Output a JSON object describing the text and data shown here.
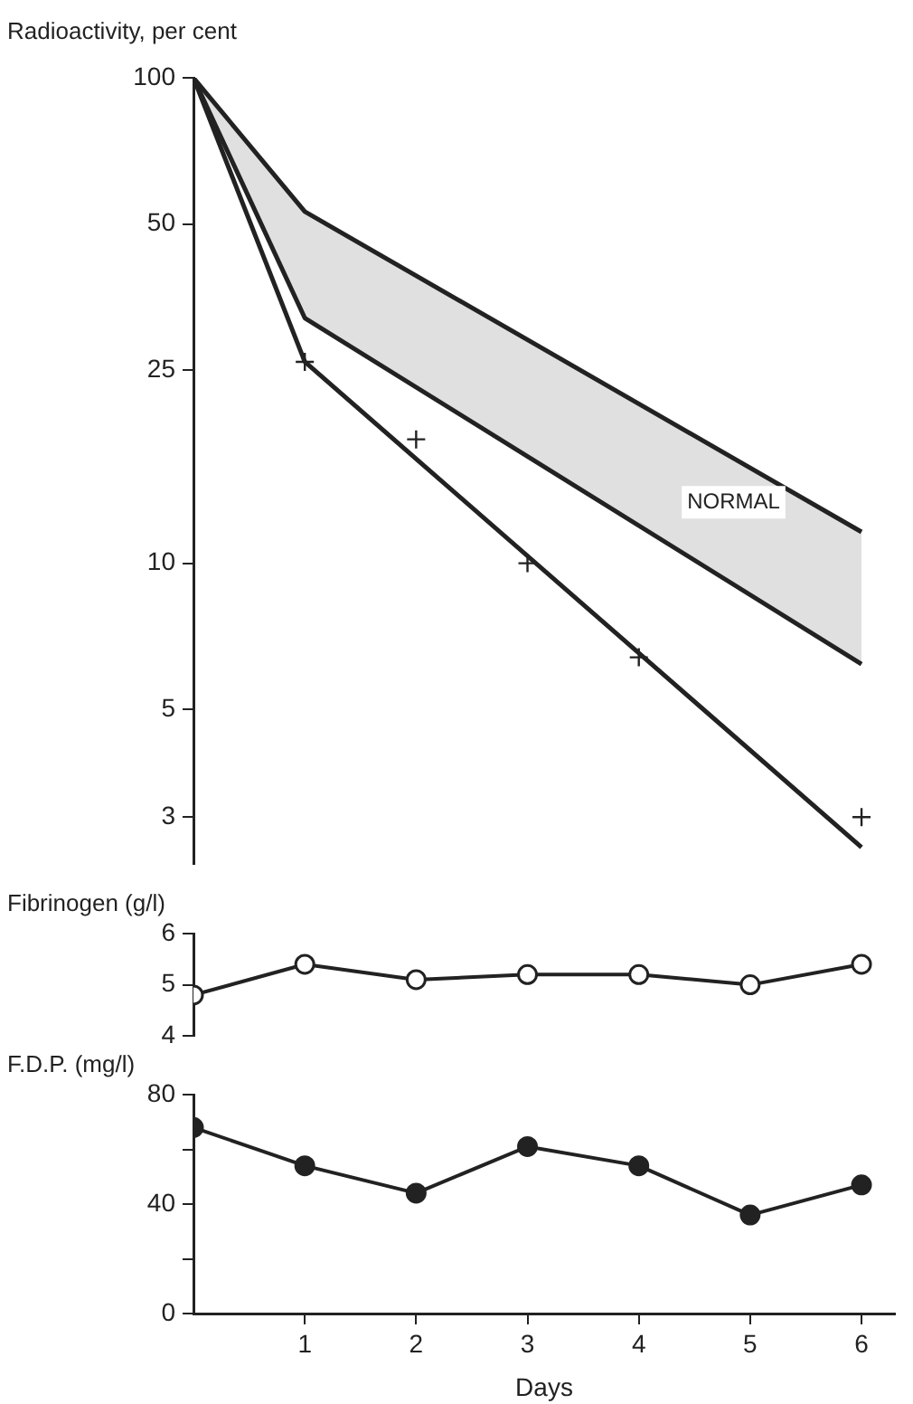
{
  "chart_data": [
    {
      "type": "line",
      "ylabel": "Radioactivity, per cent",
      "log": "y",
      "ylim": [
        2.4,
        100
      ],
      "yticks": [
        3,
        5,
        10,
        25,
        50,
        100
      ],
      "tick_labels": "y",
      "categories": [
        null,
        null,
        null,
        null,
        null,
        null,
        null
      ],
      "series": [
        {
          "type": "line",
          "values": [
            100,
            53,
            null,
            null,
            null,
            null,
            11.6
          ],
          "color": "#222222",
          "marker": "none"
        },
        {
          "type": "line",
          "values": [
            100,
            32,
            null,
            null,
            null,
            null,
            6.2
          ],
          "color": "#222222",
          "marker": "none"
        },
        {
          "type": "line",
          "values": [
            100,
            26,
            null,
            null,
            null,
            null,
            2.6
          ],
          "color": "#222222",
          "marker": "none"
        },
        {
          "type": "scatter",
          "values": [
            null,
            26,
            18,
            10,
            6.4,
            null,
            3
          ],
          "color": "#222222",
          "marker": "cross"
        }
      ],
      "annotations": [
        "NORMAL"
      ]
    },
    {
      "type": "line",
      "ylabel": "Fibrinogen (g/l)",
      "ylim": [
        4,
        6
      ],
      "yticks": [
        4,
        5,
        6
      ],
      "tick_labels": "y",
      "marker": "circle",
      "categories": [
        null,
        null,
        null,
        null,
        null,
        null,
        null
      ],
      "series": [
        {
          "values": [
            4.8,
            5.4,
            5.1,
            5.2,
            5.2,
            5.0,
            5.4
          ],
          "color": "#222222"
        }
      ]
    },
    {
      "type": "line",
      "ylabel": "F.D.P. (mg/l)",
      "xlabel": "Days",
      "ylim": [
        0,
        80
      ],
      "yticks": [
        0,
        {
          "value": 20,
          "label": null
        },
        40,
        {
          "value": 60,
          "label": null
        },
        80
      ],
      "xlim": [
        0,
        6.3
      ],
      "xticks": [
        1,
        2,
        3,
        4,
        5,
        6
      ],
      "marker": "circle",
      "series": [
        {
          "x": [
            0,
            1,
            2,
            3,
            4,
            5,
            6
          ],
          "values": [
            68,
            54,
            44,
            61,
            54,
            36,
            47
          ],
          "color": "#222222"
        }
      ]
    }
  ]
}
